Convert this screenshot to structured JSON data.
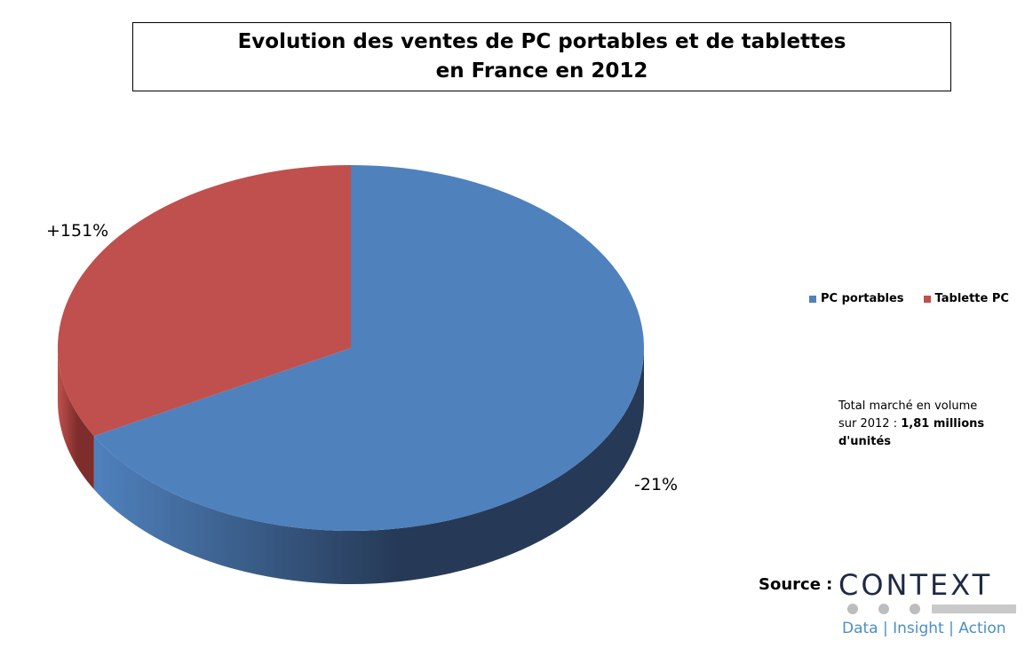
{
  "title": {
    "line1": "Evolution des ventes de PC portables et de tablettes",
    "line2": "en France en 2012"
  },
  "chart_data": {
    "type": "pie",
    "style": "3d",
    "slices": [
      {
        "name": "PC portables",
        "share_percent": 67,
        "data_label": "-21%",
        "color": "#4f81bd",
        "side_color": "#263a57"
      },
      {
        "name": "Tablette PC",
        "share_percent": 33,
        "data_label": "+151%",
        "color": "#c0504d",
        "side_color": "#7d2d2b"
      }
    ],
    "legend_position": "right"
  },
  "legend": [
    {
      "label": "PC portables",
      "color": "#4f81bd"
    },
    {
      "label": "Tablette PC",
      "color": "#c0504d"
    }
  ],
  "note": {
    "text_line1": "Total marché en volume",
    "text_line2_prefix": "sur 2012 : ",
    "text_line2_bold": "1,81 millions",
    "text_line3_bold": "d'unités"
  },
  "source": {
    "label": "Source :",
    "logo_word": "CONTEXT",
    "logo_tagline": "Data | Insight | Action"
  }
}
